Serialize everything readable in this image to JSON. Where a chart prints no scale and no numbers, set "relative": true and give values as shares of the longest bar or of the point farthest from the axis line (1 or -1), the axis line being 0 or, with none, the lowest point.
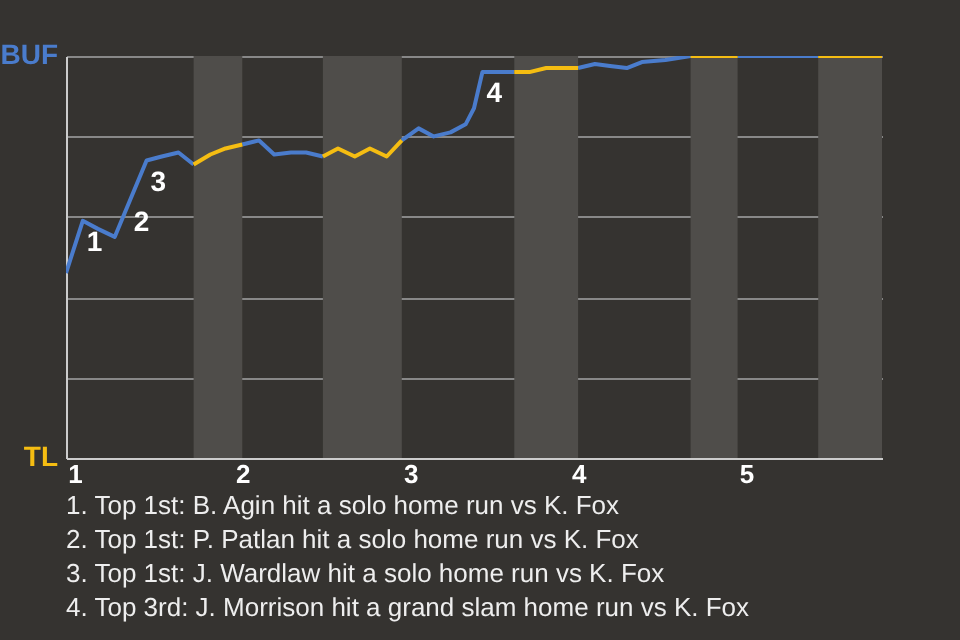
{
  "chart_data": {
    "type": "line",
    "relative": true,
    "xlim": [
      0.95,
      5.81
    ],
    "xticks": [
      1,
      2,
      3,
      4,
      5
    ],
    "grid": "y",
    "legend": "left",
    "series": [
      {
        "name": "BUF",
        "color": "#4a7ccc",
        "x": [
          0.95,
          1.05,
          1.14,
          1.24,
          1.33,
          1.43,
          1.52,
          1.62,
          1.71,
          1.86,
          2.0,
          2.1,
          2.19,
          2.29,
          2.38,
          2.48,
          2.71,
          2.95,
          3.05,
          3.14,
          3.24,
          3.33,
          3.38,
          3.43,
          3.62,
          3.81,
          4.0,
          4.1,
          4.19,
          4.29,
          4.38,
          4.52,
          4.67,
          4.81,
          4.95,
          5.43
        ],
        "values": [
          0.46,
          0.59,
          0.57,
          0.55,
          0.64,
          0.74,
          0.75,
          0.76,
          0.73,
          null,
          0.78,
          0.79,
          0.755,
          0.76,
          0.76,
          0.75,
          null,
          0.79,
          0.82,
          0.8,
          0.81,
          0.83,
          0.87,
          0.96,
          0.96,
          null,
          0.97,
          0.98,
          0.975,
          0.97,
          0.985,
          0.99,
          1,
          null,
          1,
          1
        ]
      },
      {
        "name": "TL",
        "color": "#f5bd12",
        "x": [
          1.71,
          1.81,
          1.9,
          2.0,
          2.24,
          2.48,
          2.57,
          2.67,
          2.76,
          2.86,
          2.95,
          3.29,
          3.62,
          3.71,
          3.81,
          4.0,
          4.33,
          4.67,
          4.95,
          5.19,
          5.43,
          5.81
        ],
        "values": [
          0.73,
          0.755,
          0.77,
          0.78,
          null,
          0.75,
          0.77,
          0.75,
          0.77,
          0.75,
          0.79,
          null,
          0.96,
          0.96,
          0.97,
          0.97,
          null,
          1,
          1,
          null,
          1,
          1
        ]
      }
    ],
    "bands": [
      {
        "axis": "x",
        "from": 1.71,
        "to": 2.0,
        "color": "#4f4d4a"
      },
      {
        "axis": "x",
        "from": 2.48,
        "to": 2.95,
        "color": "#4f4d4a"
      },
      {
        "axis": "x",
        "from": 3.62,
        "to": 4.0,
        "color": "#4f4d4a"
      },
      {
        "axis": "x",
        "from": 4.67,
        "to": 4.95,
        "color": "#4f4d4a"
      },
      {
        "axis": "x",
        "from": 5.43,
        "to": 5.81,
        "color": "#4f4d4a"
      }
    ],
    "annotations": [
      {
        "text": "1",
        "x": 1.05,
        "y": 0.59
      },
      {
        "text": "2",
        "x": 1.33,
        "y": 0.64
      },
      {
        "text": "3",
        "x": 1.43,
        "y": 0.74
      },
      {
        "text": "4",
        "x": 3.43,
        "y": 0.96
      },
      "1. Top 1st: B. Agin hit a solo home run vs K. Fox",
      "2. Top 1st: P. Patlan hit a solo home run vs K. Fox",
      "3. Top 1st: J. Wardlaw hit a solo home run vs K. Fox",
      "4. Top 3rd: J. Morrison hit a grand slam home run vs K. Fox"
    ]
  }
}
